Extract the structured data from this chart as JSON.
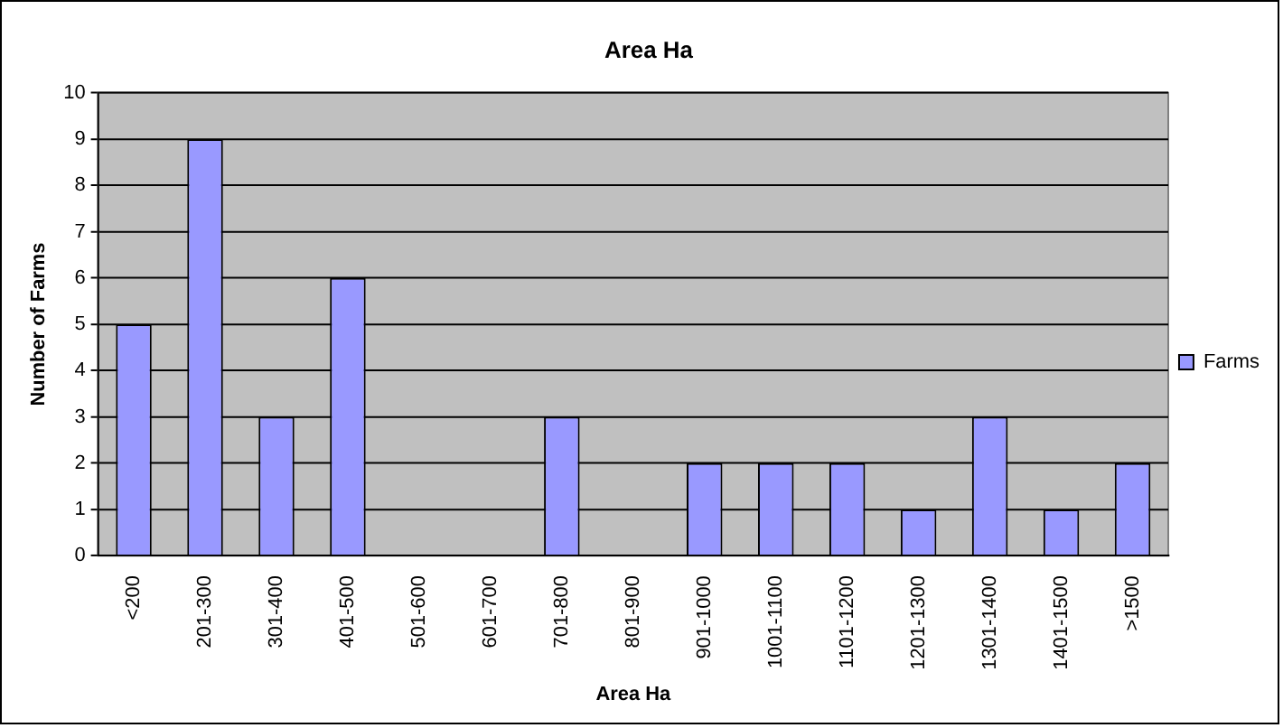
{
  "chart_data": {
    "type": "bar",
    "title": "Area Ha",
    "xlabel": "Area Ha",
    "ylabel": "Number of Farms",
    "categories": [
      "<200",
      "201-300",
      "301-400",
      "401-500",
      "501-600",
      "601-700",
      "701-800",
      "801-900",
      "901-1000",
      "1001-1100",
      "1101-1200",
      "1201-1300",
      "1301-1400",
      "1401-1500",
      ">1500"
    ],
    "series": [
      {
        "name": "Farms",
        "color": "#9999ff",
        "values": [
          5,
          9,
          3,
          6,
          0,
          0,
          3,
          0,
          2,
          2,
          2,
          1,
          3,
          1,
          2
        ]
      }
    ],
    "ylim": [
      0,
      10
    ],
    "yticks": [
      0,
      1,
      2,
      3,
      4,
      5,
      6,
      7,
      8,
      9,
      10
    ],
    "grid": "y",
    "legend": "right"
  }
}
